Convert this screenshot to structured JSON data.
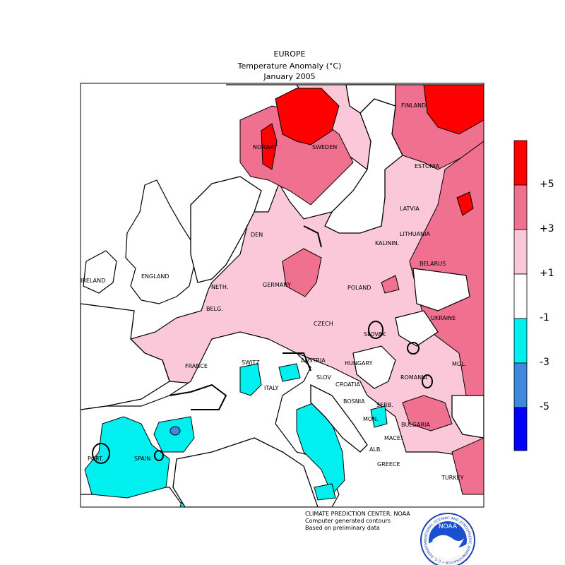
{
  "title": {
    "region": "EUROPE",
    "variable": "Temperature Anomaly (°C)",
    "period": "January 2005"
  },
  "legend": {
    "labels": [
      "+5",
      "+3",
      "+1",
      "-1",
      "-3",
      "-5"
    ],
    "colors": [
      "#ff0000",
      "#f07090",
      "#fac8d8",
      "#ffffff",
      "#00f0f0",
      "#4088e0",
      "#0000ff"
    ]
  },
  "countries": {
    "finland": "FINLAND",
    "norway": "NORWAY",
    "sweden": "SWEDEN",
    "estonia": "ESTONIA",
    "latvia": "LATVIA",
    "lithuania": "LITHUANIA",
    "kalinin": "KALININ.",
    "belarus": "BELARUS",
    "den": "DEN",
    "ireland": "IRELAND",
    "england": "ENGLAND",
    "neth": "NETH.",
    "germany": "GERMANY",
    "poland": "POLAND",
    "belg": "BELG.",
    "czech": "CZECH",
    "ukraine": "UKRAINE",
    "slovak": "SLOVAK",
    "france": "FRANCE",
    "swit": "SWITZ",
    "austria": "AUSTRIA",
    "hungary": "HUNGARY",
    "mol": "MOL.",
    "romania": "ROMANIA",
    "slov": "SLOV",
    "croatia": "CROATIA",
    "ital": "ITALY",
    "bosnia": "BOSNIA",
    "serb": "SERB.",
    "mon": "MON.",
    "bulgaria": "BULGARIA",
    "mace": "MACE.",
    "alb": "ALB.",
    "greece": "GREECE",
    "port": "PORT.",
    "spain": "SPAIN",
    "turkey": "TURKEY"
  },
  "credits": {
    "line1": "CLIMATE PREDICTION CENTER, NOAA",
    "line2": "Computer generated contours",
    "line3": "Based on preliminary data"
  },
  "logo": {
    "text": "NOAA",
    "ring": "NATIONAL OCEANIC AND ATMOSPHERIC ADMINISTRATION • U.S. DEPARTMENT OF COMMERCE •"
  }
}
